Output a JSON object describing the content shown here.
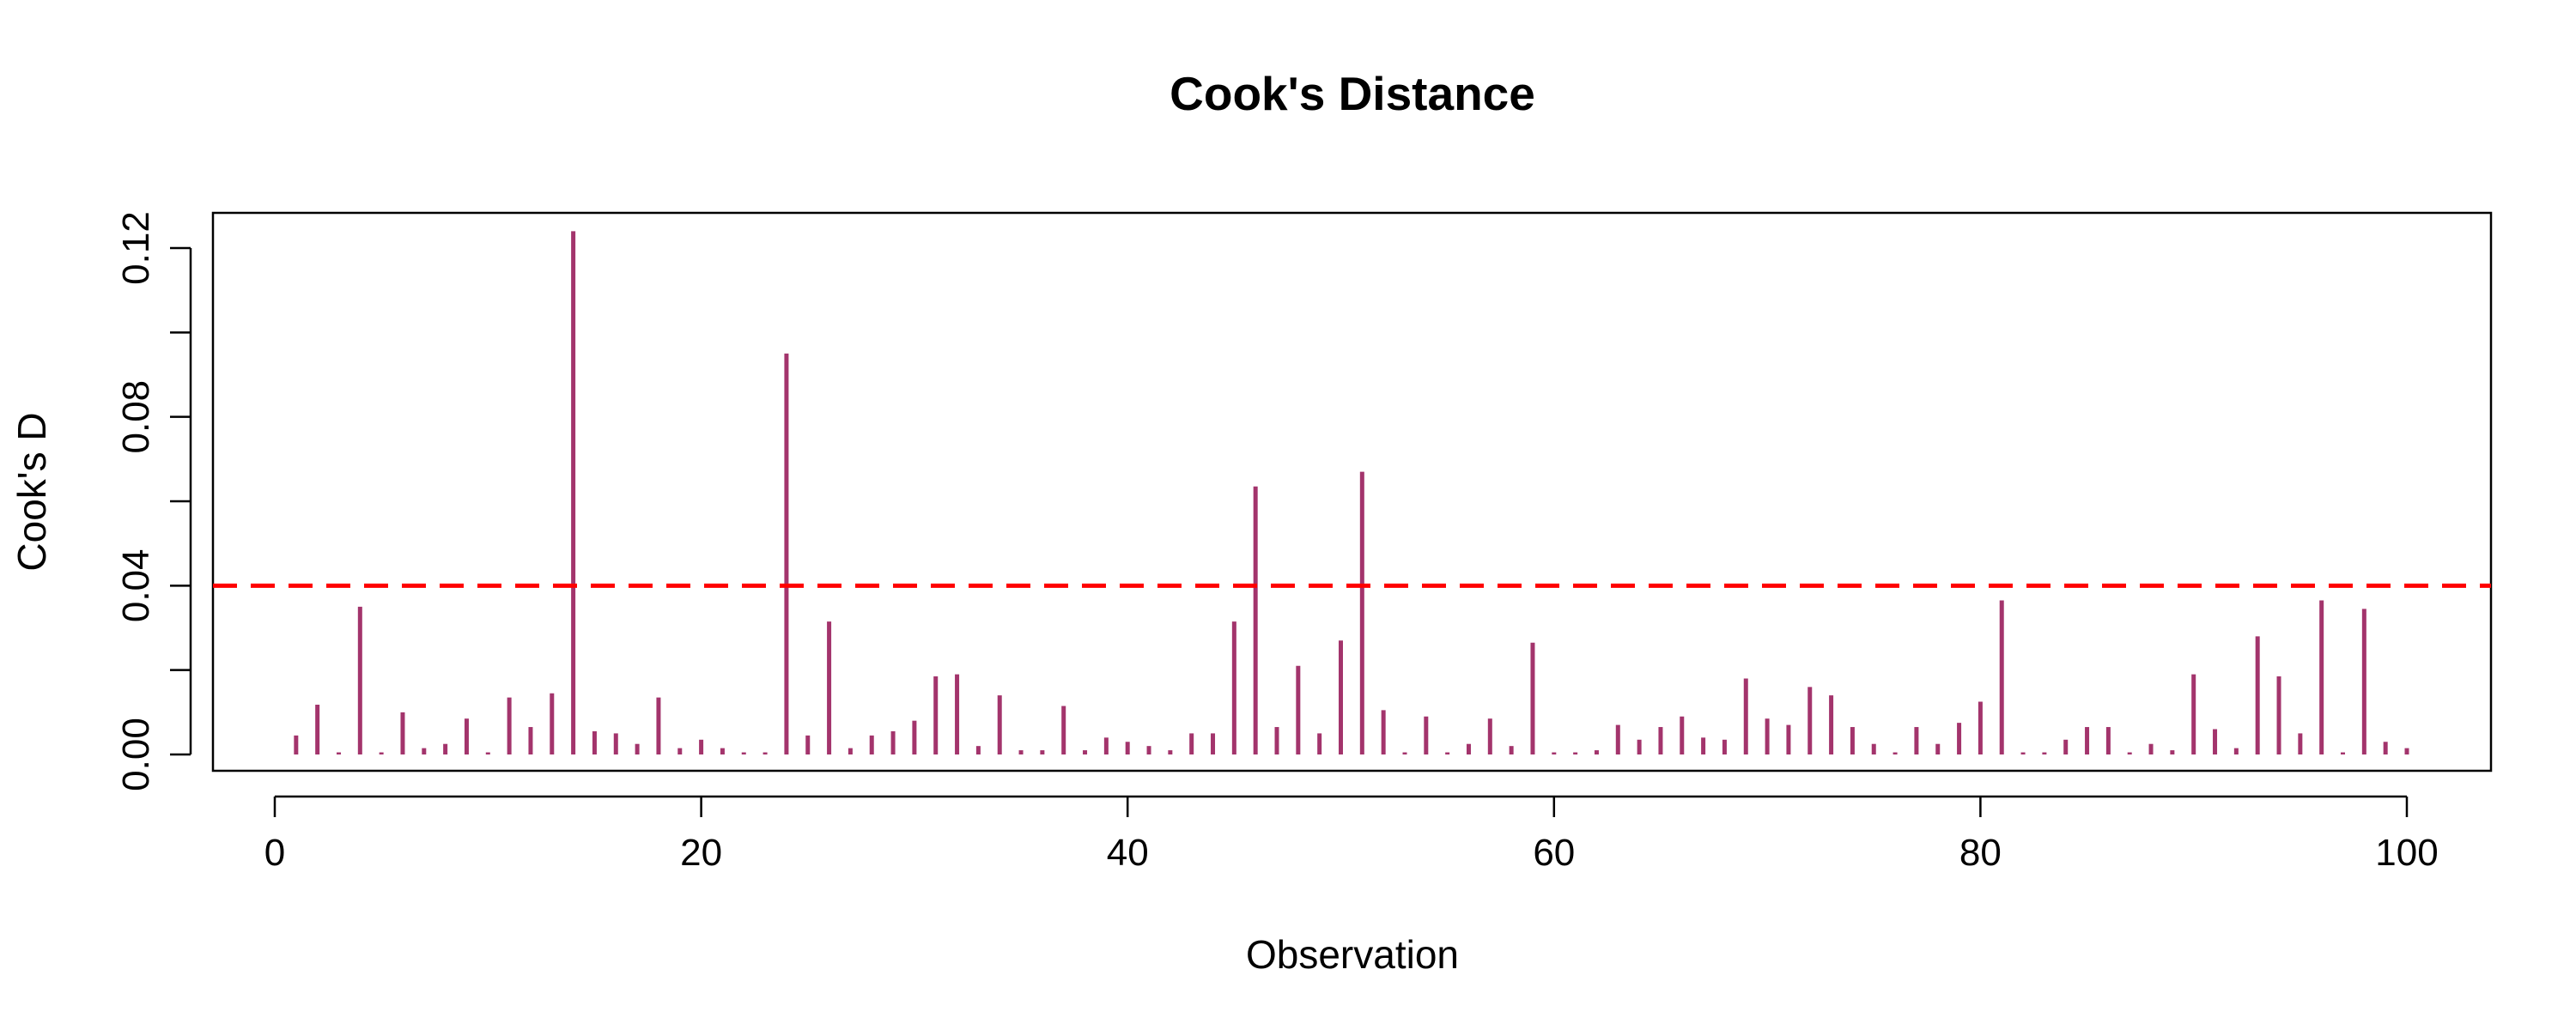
{
  "chart_data": {
    "type": "bar",
    "title": "Cook's Distance",
    "xlabel": "Observation",
    "ylabel": "Cook's D",
    "xlim": [
      0,
      100
    ],
    "ylim": [
      0,
      0.12
    ],
    "x_ticks": [
      "0",
      "20",
      "40",
      "60",
      "80",
      "100"
    ],
    "x_tick_values": [
      0,
      20,
      40,
      60,
      80,
      100
    ],
    "y_ticks": [
      "0.00",
      "0.04",
      "0.08",
      "0.12"
    ],
    "y_tick_values": [
      0.0,
      0.04,
      0.08,
      0.12
    ],
    "y_minor_tick_values": [
      0.02,
      0.06,
      0.1
    ],
    "threshold": 0.04,
    "threshold_style": "dashed",
    "grid": false,
    "x": [
      1,
      2,
      3,
      4,
      5,
      6,
      7,
      8,
      9,
      10,
      11,
      12,
      13,
      14,
      15,
      16,
      17,
      18,
      19,
      20,
      21,
      22,
      23,
      24,
      25,
      26,
      27,
      28,
      29,
      30,
      31,
      32,
      33,
      34,
      35,
      36,
      37,
      38,
      39,
      40,
      41,
      42,
      43,
      44,
      45,
      46,
      47,
      48,
      49,
      50,
      51,
      52,
      53,
      54,
      55,
      56,
      57,
      58,
      59,
      60,
      61,
      62,
      63,
      64,
      65,
      66,
      67,
      68,
      69,
      70,
      71,
      72,
      73,
      74,
      75,
      76,
      77,
      78,
      79,
      80,
      81,
      82,
      83,
      84,
      85,
      86,
      87,
      88,
      89,
      90,
      91,
      92,
      93,
      94,
      95,
      96,
      97,
      98,
      99,
      100
    ],
    "values": [
      0.0045,
      0.0118,
      0.0005,
      0.035,
      0.0005,
      0.01,
      0.0015,
      0.0025,
      0.0085,
      0.0005,
      0.0135,
      0.0065,
      0.0145,
      0.124,
      0.0055,
      0.005,
      0.0025,
      0.0135,
      0.0015,
      0.0035,
      0.0015,
      0.0005,
      0.0005,
      0.095,
      0.0045,
      0.0315,
      0.0015,
      0.0045,
      0.0055,
      0.008,
      0.0185,
      0.019,
      0.002,
      0.014,
      0.001,
      0.001,
      0.0115,
      0.001,
      0.004,
      0.003,
      0.002,
      0.001,
      0.005,
      0.005,
      0.0315,
      0.0635,
      0.0065,
      0.021,
      0.005,
      0.027,
      0.067,
      0.0105,
      0.0005,
      0.009,
      0.0005,
      0.0025,
      0.0085,
      0.002,
      0.0265,
      0.0005,
      0.0005,
      0.001,
      0.007,
      0.0035,
      0.0065,
      0.009,
      0.004,
      0.0035,
      0.018,
      0.0085,
      0.007,
      0.016,
      0.014,
      0.0065,
      0.0025,
      0.0005,
      0.0065,
      0.0025,
      0.0075,
      0.0125,
      0.0365,
      0.0005,
      0.0005,
      0.0035,
      0.0065,
      0.0065,
      0.0005,
      0.0025,
      0.001,
      0.019,
      0.006,
      0.0015,
      0.028,
      0.0185,
      0.005,
      0.0365,
      0.0005,
      0.0345,
      0.003,
      0.0015
    ],
    "colors": {
      "bars": "#A3346C",
      "threshold": "#FF0000",
      "axes": "#000000"
    }
  }
}
